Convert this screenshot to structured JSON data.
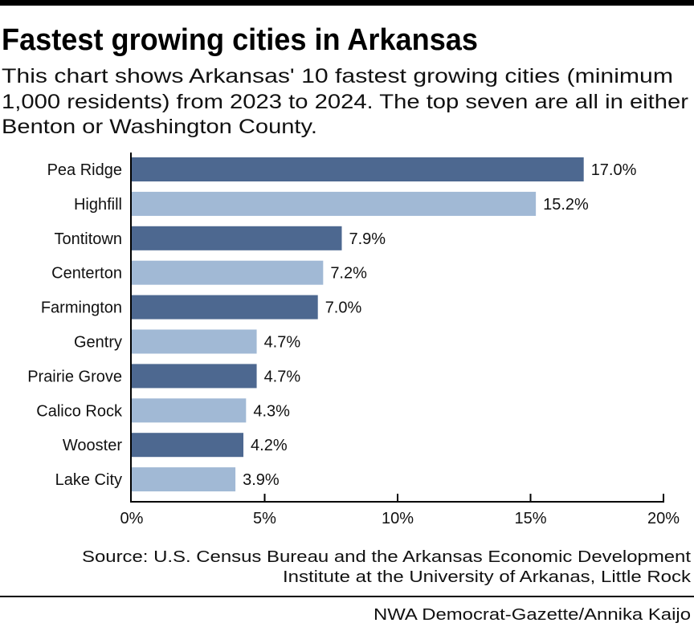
{
  "chart_data": {
    "type": "bar",
    "orientation": "horizontal",
    "title": "Fastest growing cities in Arkansas",
    "subtitle_lines": [
      "This chart shows Arkansas' 10 fastest growing cities (minimum",
      "1,000 residents) from 2023 to 2024. The top seven are all in either",
      "Benton or Washington County."
    ],
    "categories": [
      "Pea Ridge",
      "Highfill",
      "Tontitown",
      "Centerton",
      "Farmington",
      "Gentry",
      "Prairie Grove",
      "Calico Rock",
      "Wooster",
      "Lake City"
    ],
    "values": [
      17.0,
      15.2,
      7.9,
      7.2,
      7.0,
      4.7,
      4.7,
      4.3,
      4.2,
      3.9
    ],
    "value_labels": [
      "17.0%",
      "15.2%",
      "7.9%",
      "7.2%",
      "7.0%",
      "4.7%",
      "4.7%",
      "4.3%",
      "4.2%",
      "3.9%"
    ],
    "xlim": [
      0,
      20
    ],
    "xticks": [
      0,
      5,
      10,
      15,
      20
    ],
    "xtick_labels": [
      "0%",
      "5%",
      "10%",
      "15%",
      "20%"
    ],
    "xlabel": "",
    "ylabel": "",
    "grid": false,
    "colors": [
      "#4d6890",
      "#a1b9d5"
    ],
    "source_lines": [
      "Source: U.S. Census Bureau and the Arkansas Economic Development",
      "Institute at the University of Arkanas, Little Rock"
    ],
    "credit": "NWA Democrat-Gazette/Annika Kaijo"
  }
}
